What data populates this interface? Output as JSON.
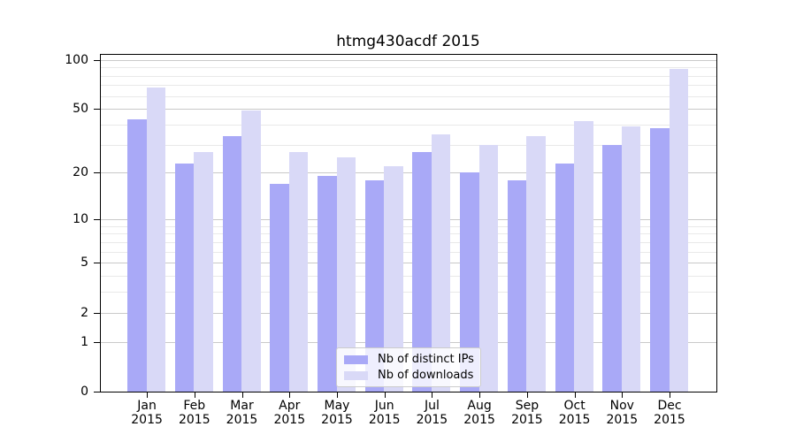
{
  "chart_data": {
    "type": "bar",
    "title": "htmg430acdf 2015",
    "year": "2015",
    "categories": [
      "Jan",
      "Feb",
      "Mar",
      "Apr",
      "May",
      "Jun",
      "Jul",
      "Aug",
      "Sep",
      "Oct",
      "Nov",
      "Dec"
    ],
    "series": [
      {
        "key": "distinct-ips",
        "name": "Nb of distinct IPs",
        "color": "#a9a9f7",
        "values": [
          43,
          23,
          34,
          17,
          19,
          18,
          27,
          20,
          18,
          23,
          30,
          38
        ]
      },
      {
        "key": "downloads",
        "name": "Nb of downloads",
        "color": "#d9d9f7",
        "values": [
          68,
          27,
          49,
          27,
          25,
          22,
          35,
          30,
          34,
          42,
          39,
          88
        ]
      }
    ],
    "xlabel": "",
    "ylabel": "",
    "yscale": "log1p",
    "yticks": [
      0,
      1,
      2,
      5,
      10,
      20,
      50,
      100
    ],
    "minor_gridlines": [
      3,
      4,
      6,
      7,
      8,
      9,
      30,
      40,
      60,
      70,
      80,
      90
    ],
    "ylim": [
      0,
      109
    ],
    "grid": true,
    "legend_position": "lower center"
  }
}
